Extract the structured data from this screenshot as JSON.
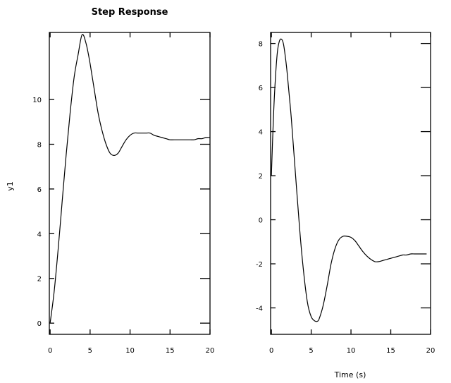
{
  "chart_data": [
    {
      "type": "line",
      "title": "Step Response",
      "ylabel": "y1",
      "xlabel": "",
      "xlim": [
        -0.1,
        20
      ],
      "ylim": [
        -0.5,
        13
      ],
      "xticks": [
        0,
        5,
        10,
        15,
        20
      ],
      "yticks": [
        0,
        2,
        4,
        6,
        8,
        10
      ],
      "grid": false,
      "series": [
        {
          "x": [
            0,
            0.5,
            1,
            1.5,
            2,
            2.5,
            3,
            3.5,
            4,
            4.5,
            5,
            5.5,
            6,
            6.5,
            7,
            7.5,
            8,
            8.5,
            9,
            9.5,
            10,
            10.5,
            11,
            11.5,
            12,
            12.5,
            13,
            13.5,
            14,
            14.5,
            15,
            15.5,
            16,
            16.5,
            17,
            17.5,
            18,
            18.5,
            19,
            19.5,
            20
          ],
          "y": [
            0,
            1.4,
            3.3,
            5.4,
            7.5,
            9.4,
            11.0,
            12.0,
            12.9,
            12.5,
            11.6,
            10.5,
            9.4,
            8.6,
            8.0,
            7.6,
            7.5,
            7.6,
            7.9,
            8.2,
            8.4,
            8.5,
            8.5,
            8.5,
            8.5,
            8.5,
            8.4,
            8.35,
            8.3,
            8.25,
            8.2,
            8.2,
            8.2,
            8.2,
            8.2,
            8.2,
            8.2,
            8.25,
            8.25,
            8.3,
            8.3
          ]
        }
      ]
    },
    {
      "type": "line",
      "title": "",
      "ylabel": "",
      "xlabel": "Time (s)",
      "xlim": [
        -0.1,
        20
      ],
      "ylim": [
        -5.2,
        8.5
      ],
      "xticks": [
        0,
        5,
        10,
        15,
        20
      ],
      "yticks": [
        -4,
        -2,
        0,
        2,
        4,
        6,
        8
      ],
      "grid": false,
      "series": [
        {
          "x": [
            0,
            0.25,
            0.5,
            0.75,
            1,
            1.25,
            1.5,
            1.75,
            2,
            2.5,
            3,
            3.5,
            4,
            4.5,
            5,
            5.5,
            5.8,
            6,
            6.5,
            7,
            7.5,
            8,
            8.5,
            9,
            9.5,
            10,
            10.5,
            11,
            11.5,
            12,
            12.5,
            13,
            13.5,
            14,
            14.5,
            15,
            15.5,
            16,
            16.5,
            17,
            17.5,
            18,
            18.5,
            19,
            19.5
          ],
          "y": [
            2.0,
            4.6,
            6.4,
            7.6,
            8.1,
            8.2,
            8.0,
            7.4,
            6.6,
            4.6,
            2.2,
            -0.2,
            -2.2,
            -3.7,
            -4.4,
            -4.6,
            -4.6,
            -4.5,
            -3.9,
            -3.0,
            -2.0,
            -1.3,
            -0.9,
            -0.75,
            -0.75,
            -0.8,
            -0.95,
            -1.2,
            -1.45,
            -1.65,
            -1.8,
            -1.9,
            -1.9,
            -1.85,
            -1.8,
            -1.75,
            -1.7,
            -1.65,
            -1.6,
            -1.6,
            -1.55,
            -1.55,
            -1.55,
            -1.55,
            -1.55
          ]
        }
      ]
    }
  ]
}
